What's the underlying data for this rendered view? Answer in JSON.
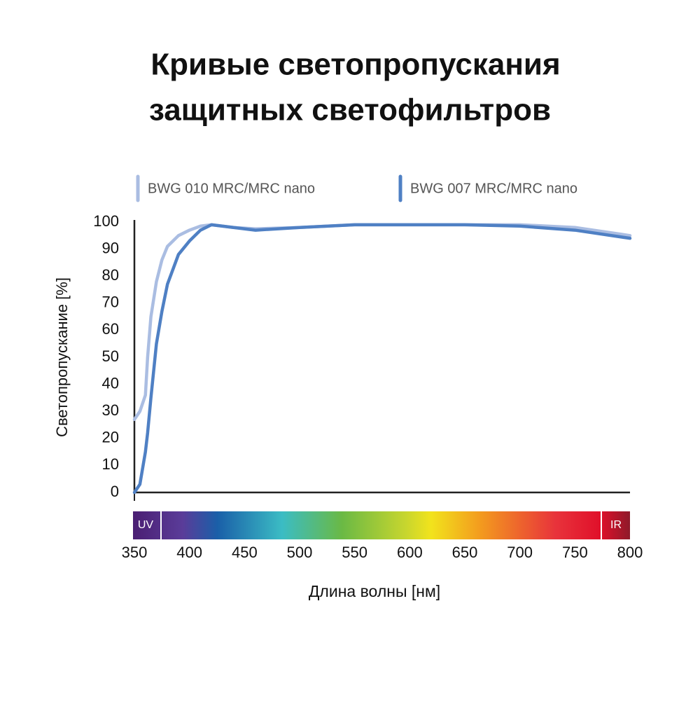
{
  "chart_data": {
    "type": "line",
    "title": [
      "Кривые светопропускания",
      "защитных светофильтров"
    ],
    "x_label": "Длина волны [нм]",
    "y_label": "Светопропускание [%]",
    "x": [
      350,
      355,
      360,
      362,
      365,
      370,
      375,
      380,
      390,
      400,
      410,
      420,
      440,
      460,
      500,
      550,
      600,
      650,
      700,
      750,
      800
    ],
    "series": [
      {
        "name": "BWG 010 MRC/MRC nano",
        "color": "#aabde2",
        "values": [
          27,
          30,
          36,
          50,
          65,
          78,
          86,
          91,
          95,
          97,
          98.5,
          99,
          98,
          97.5,
          98,
          99,
          99,
          99,
          99,
          98,
          95
        ]
      },
      {
        "name": "BWG 007 MRC/MRC nano",
        "color": "#4f80c4",
        "values": [
          0,
          3,
          15,
          22,
          35,
          55,
          67,
          77,
          88,
          93,
          97,
          99,
          98,
          97,
          98,
          99,
          99,
          99,
          98.5,
          97,
          94
        ]
      }
    ],
    "xlim": [
      350,
      800
    ],
    "ylim": [
      0,
      100
    ],
    "xticks": [
      350,
      400,
      450,
      500,
      550,
      600,
      650,
      700,
      750,
      800
    ],
    "yticks": [
      0,
      10,
      20,
      30,
      40,
      50,
      60,
      70,
      80,
      90,
      100
    ],
    "annotations": [
      "UV",
      "IR"
    ],
    "grid": false
  }
}
